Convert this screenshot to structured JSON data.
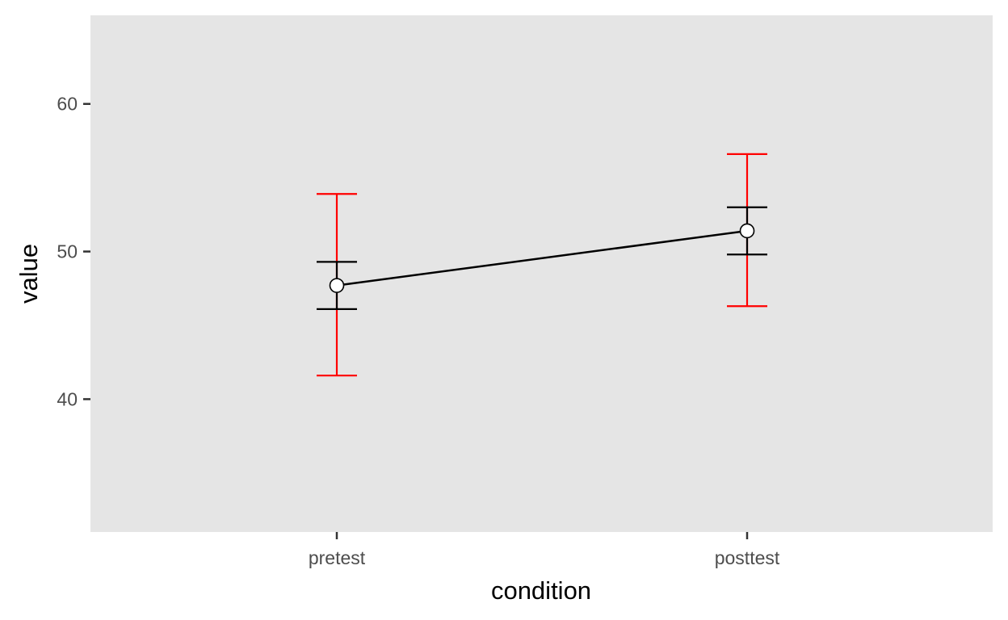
{
  "chart_data": {
    "type": "line",
    "title": "",
    "xlabel": "condition",
    "ylabel": "value",
    "categories": [
      "pretest",
      "posttest"
    ],
    "ylim": [
      31,
      66
    ],
    "yticks": [
      40,
      50,
      60
    ],
    "grid": false,
    "legend": "none",
    "series": [
      {
        "values": [
          47.7,
          51.4
        ],
        "ci": [
          [
            41.6,
            53.9
          ],
          [
            46.3,
            56.6
          ]
        ],
        "se": [
          [
            46.1,
            49.3
          ],
          [
            49.8,
            53.0
          ]
        ]
      }
    ],
    "colors": {
      "panel": "#e5e5e5",
      "line": "#000000",
      "ci_bar": "#ff0000",
      "se_bar": "#000000",
      "point_fill": "#ffffff",
      "point_stroke": "#000000",
      "tick": "#333333"
    }
  }
}
